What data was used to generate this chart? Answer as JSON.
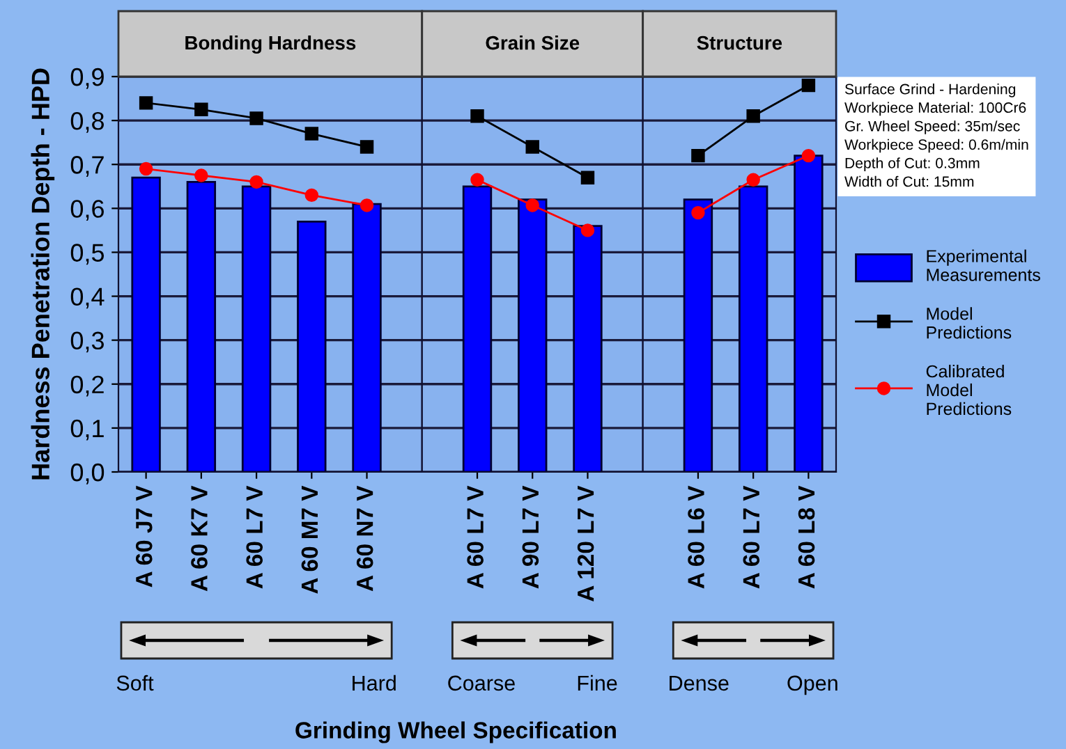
{
  "chart_data": [
    {
      "type": "bar",
      "title": "Bonding Hardness",
      "ylabel": "Hardness Penetration Depth - HPD",
      "categories": [
        "A 60 J7 V",
        "A 60 K7 V",
        "A 60 L7 V",
        "A 60 M7 V",
        "A 60 N7 V"
      ],
      "series": [
        {
          "name": "Experimental Measurements",
          "color": "#0000ff",
          "values": [
            0.67,
            0.66,
            0.65,
            0.57,
            0.61
          ]
        },
        {
          "name": "Model Predictions",
          "type": "line",
          "marker": "square",
          "color": "#000000",
          "values": [
            0.84,
            0.825,
            0.805,
            0.77,
            0.74
          ]
        },
        {
          "name": "Calibrated Model Predictions",
          "type": "line",
          "marker": "circle",
          "color": "#ff0000",
          "values": [
            0.69,
            0.675,
            0.66,
            0.63,
            0.607
          ]
        }
      ],
      "ylim": [
        0,
        0.9
      ],
      "yticks": [
        {
          "value": 0,
          "label": "0,0"
        },
        {
          "value": 0.1,
          "label": "0,1"
        },
        {
          "value": 0.2,
          "label": "0,2"
        },
        {
          "value": 0.3,
          "label": "0,3"
        },
        {
          "value": 0.4,
          "label": "0,4"
        },
        {
          "value": 0.5,
          "label": "0,5"
        },
        {
          "value": 0.6,
          "label": "0,6"
        },
        {
          "value": 0.7,
          "label": "0,7"
        },
        {
          "value": 0.8,
          "label": "0,8"
        },
        {
          "value": 0.9,
          "label": "0,9"
        }
      ],
      "grid": "y",
      "legend": "right",
      "annotations": [
        "Soft",
        "Hard"
      ]
    },
    {
      "type": "bar",
      "title": "Grain Size",
      "xlabel": "Grinding Wheel Specification",
      "categories": [
        "A 60 L7 V",
        "A 90 L7 V",
        "A 120 L7 V"
      ],
      "series": [
        {
          "color": "#0000ff",
          "values": [
            0.65,
            0.62,
            0.56
          ]
        },
        {
          "type": "line",
          "marker": "square",
          "color": "#000000",
          "values": [
            0.81,
            0.74,
            0.67
          ]
        },
        {
          "type": "line",
          "marker": "circle",
          "color": "#ff0000",
          "values": [
            0.665,
            0.607,
            0.55
          ]
        }
      ],
      "ylim": [
        0,
        0.9
      ],
      "grid": "y",
      "tick_labels": "x",
      "annotations": [
        "Coarse",
        "Fine"
      ]
    },
    {
      "type": "bar",
      "title": "Structure",
      "categories": [
        "A 60 L6 V",
        "A 60 L7 V",
        "A 60 L8 V"
      ],
      "series": [
        {
          "color": "#0000ff",
          "values": [
            0.62,
            0.65,
            0.72
          ]
        },
        {
          "type": "line",
          "marker": "square",
          "color": "#000000",
          "values": [
            0.72,
            0.81,
            0.88
          ]
        },
        {
          "type": "line",
          "marker": "circle",
          "color": "#ff0000",
          "values": [
            0.59,
            0.665,
            0.72
          ]
        }
      ],
      "ylim": [
        0,
        0.9
      ],
      "grid": "y",
      "tick_labels": "x",
      "annotations": [
        "Dense",
        "Open",
        "Surface Grind - Hardening\nWorkpiece Material: 100Cr6\nGr. Wheel Speed: 35m/sec\nWorkpiece Speed: 0.6m/min\nDepth of Cut: 0.3mm\nWidth of Cut: 15mm"
      ]
    }
  ]
}
